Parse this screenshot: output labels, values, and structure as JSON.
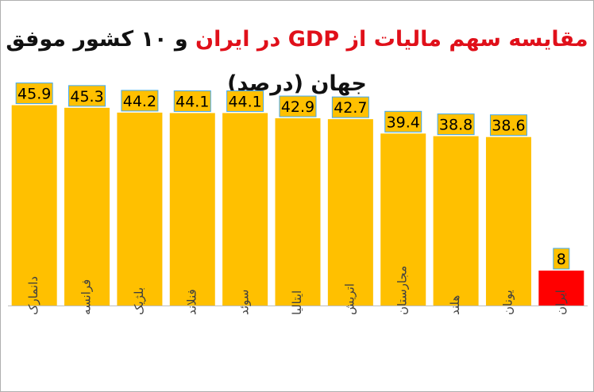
{
  "title": {
    "part1": "مقایسه سهم مالیات از GDP در ایران",
    "part2": "و ۱۰ کشور موفق جهان (درصد)"
  },
  "colors": {
    "bar": "#FFC000",
    "highlight": "#FF0000",
    "title_accent": "#E0101A",
    "label_box": "#FFC000",
    "label_border": "#3FA9F5"
  },
  "chart_data": {
    "type": "bar",
    "title": "مقایسه سهم مالیات از GDP در ایران و ۱۰ کشور موفق جهان (درصد)",
    "categories": [
      "دانمارک",
      "فرانسه",
      "بلژیک",
      "فنلاند",
      "سوئد",
      "ایتالیا",
      "اتریش",
      "مجارستان",
      "هلند",
      "یونان",
      "ایران"
    ],
    "values": [
      45.9,
      45.3,
      44.2,
      44.1,
      44.1,
      42.9,
      42.7,
      39.4,
      38.8,
      38.6,
      8
    ],
    "value_labels": [
      "45.9",
      "45.3",
      "44.2",
      "44.1",
      "44.1",
      "42.9",
      "42.7",
      "39.4",
      "38.8",
      "38.6",
      "8"
    ],
    "highlight_index": 10,
    "ylim": [
      0,
      50
    ],
    "grid": false,
    "legend": "none",
    "xlabel": "",
    "ylabel": ""
  }
}
